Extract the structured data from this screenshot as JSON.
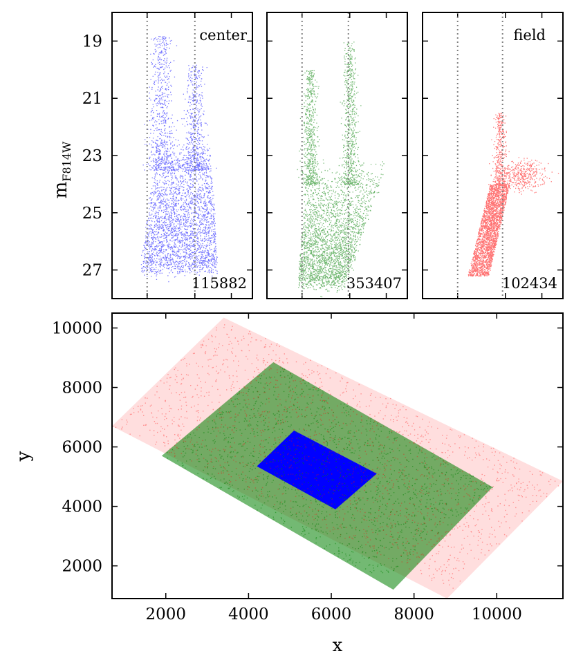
{
  "colors": {
    "center": "#0000ff",
    "mid": "#008000",
    "field": "#ff0000",
    "guide": "#808080"
  },
  "chart_data": [
    {
      "type": "scatter",
      "panel": "cmd-center",
      "annotation": "center",
      "count_label": "115882",
      "ylabel_main": "m",
      "ylabel_sub": "F814W",
      "ylim": [
        28,
        18
      ],
      "yticks": [
        "19",
        "21",
        "23",
        "25",
        "27"
      ],
      "guide_x_fraction": [
        0.25,
        0.59
      ],
      "series": [
        {
          "shape": "cone",
          "base_mag": 27.0,
          "top_mag": 22.5,
          "base_range": [
            0.2,
            0.75
          ],
          "top_range": [
            0.32,
            0.7
          ],
          "weight": 1.0
        },
        {
          "shape": "plume",
          "mag_range": [
            18.8,
            23.5
          ],
          "x_center": 0.35,
          "width": 0.12,
          "weight": 0.25
        },
        {
          "shape": "plume",
          "mag_range": [
            19.8,
            23.5
          ],
          "x_center": 0.59,
          "width": 0.11,
          "weight": 0.2
        }
      ]
    },
    {
      "type": "scatter",
      "panel": "cmd-mid",
      "annotation": "",
      "count_label": "353407",
      "ylim": [
        28,
        18
      ],
      "guide_x_fraction": [
        0.25,
        0.58
      ],
      "series": [
        {
          "shape": "cone",
          "base_mag": 27.5,
          "top_mag": 23.3,
          "base_range": [
            0.22,
            0.55
          ],
          "top_range": [
            0.28,
            0.85
          ],
          "weight": 1.0
        },
        {
          "shape": "plume",
          "mag_range": [
            20.0,
            24.0
          ],
          "x_center": 0.31,
          "width": 0.07,
          "weight": 0.25
        },
        {
          "shape": "plume",
          "mag_range": [
            19.0,
            24.0
          ],
          "x_center": 0.59,
          "width": 0.07,
          "weight": 0.25
        }
      ]
    },
    {
      "type": "scatter",
      "panel": "cmd-field",
      "annotation": "field",
      "count_label": "102434",
      "ylim": [
        28,
        18
      ],
      "guide_x_fraction": [
        0.25,
        0.57
      ],
      "series": [
        {
          "shape": "band",
          "mag_range": [
            24.0,
            27.2
          ],
          "x_top": [
            0.48,
            0.62
          ],
          "x_bottom": [
            0.32,
            0.47
          ],
          "weight": 1.0
        },
        {
          "shape": "plume",
          "mag_range": [
            21.5,
            24.0
          ],
          "x_center": 0.55,
          "width": 0.06,
          "weight": 0.15
        },
        {
          "shape": "blob",
          "mag_range": [
            23.3,
            24.0
          ],
          "x_center": 0.72,
          "width": 0.2,
          "weight": 0.15
        }
      ]
    },
    {
      "type": "scatter",
      "panel": "xy-map",
      "xlabel": "x",
      "ylabel": "y",
      "xlim": [
        700,
        11600
      ],
      "ylim": [
        900,
        10500
      ],
      "xticks": [
        2000,
        4000,
        6000,
        8000,
        10000
      ],
      "yticks": [
        2000,
        4000,
        6000,
        8000,
        10000
      ],
      "series": [
        {
          "region": "field",
          "corners": [
            [
              3400,
              10350
            ],
            [
              11600,
              4850
            ],
            [
              8800,
              900
            ],
            [
              700,
              6700
            ]
          ]
        },
        {
          "region": "mid",
          "corners": [
            [
              4600,
              8850
            ],
            [
              9900,
              4650
            ],
            [
              7500,
              1200
            ],
            [
              1900,
              5700
            ]
          ]
        },
        {
          "region": "center",
          "corners": [
            [
              5100,
              6550
            ],
            [
              7100,
              5100
            ],
            [
              6100,
              3900
            ],
            [
              4200,
              5350
            ]
          ]
        }
      ]
    }
  ]
}
